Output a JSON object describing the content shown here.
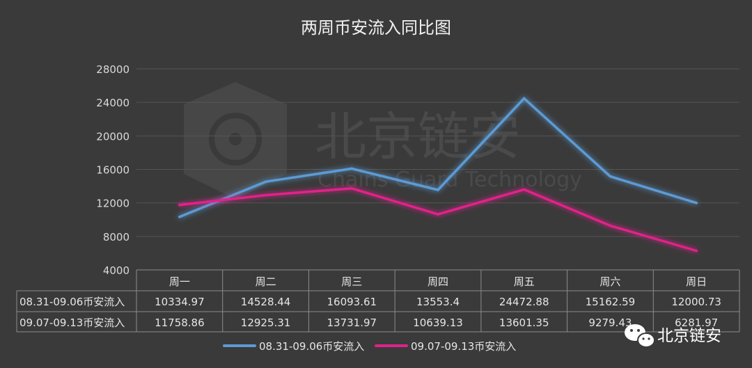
{
  "chart_data": {
    "type": "line",
    "title": "两周币安流入同比图",
    "categories": [
      "周一",
      "周二",
      "周三",
      "周四",
      "周五",
      "周六",
      "周日"
    ],
    "ylim": [
      4000,
      28000
    ],
    "yticks": [
      "28000",
      "24000",
      "20000",
      "16000",
      "12000",
      "8000",
      "4000"
    ],
    "grid": true,
    "legend": "bottom",
    "series": [
      {
        "name": "08.31-09.06币安流入",
        "color": "#5b9bd5",
        "values": [
          10334.97,
          14528.44,
          16093.61,
          13553.4,
          24472.88,
          15162.59,
          12000.73
        ],
        "labels": [
          "10334.97",
          "14528.44",
          "16093.61",
          "13553.4",
          "24472.88",
          "15162.59",
          "12000.73"
        ]
      },
      {
        "name": "09.07-09.13币安流入",
        "color": "#e0218a",
        "values": [
          11758.86,
          12925.31,
          13731.97,
          10639.13,
          13601.35,
          9279.43,
          6281.97
        ],
        "labels": [
          "11758.86",
          "12925.31",
          "13731.97",
          "10639.13",
          "13601.35",
          "9279.43",
          "6281.97"
        ]
      }
    ]
  },
  "watermark": {
    "title": "北京链安",
    "subtitle": "Chains Guard Technology"
  },
  "brand": {
    "label": "北京链安",
    "icon": "wechat-icon"
  }
}
